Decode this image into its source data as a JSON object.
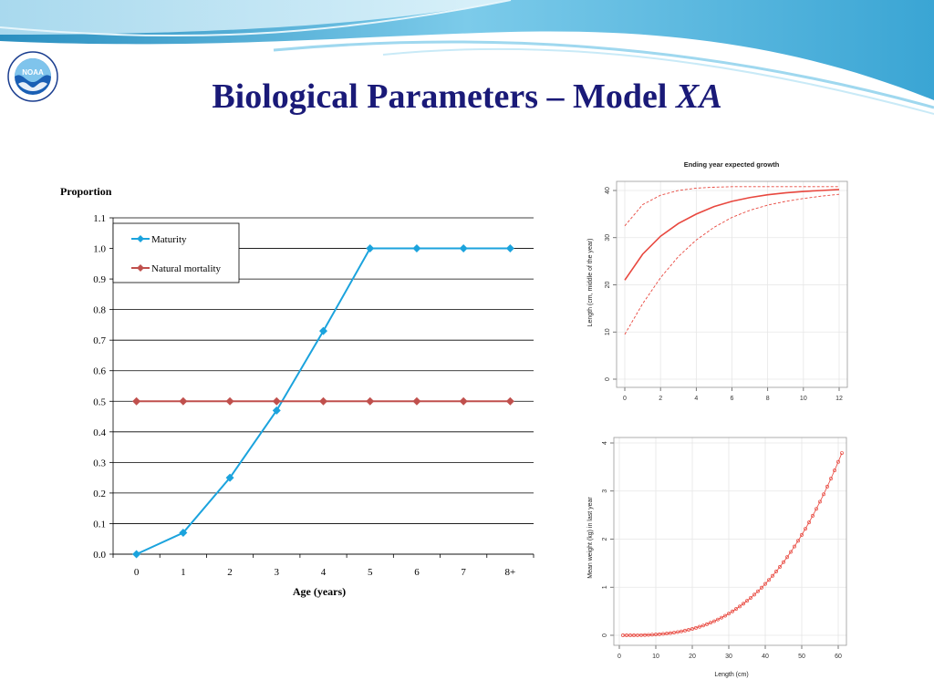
{
  "slide": {
    "title_main": "Biological Parameters – Model ",
    "title_italic": "XA",
    "logo_text": "NOAA",
    "logo_ring_text": "NATIONAL OCEANIC AND ATMOSPHERIC ADMINISTRATION · U.S. DEPARTMENT OF COMMERCE",
    "colors": {
      "title": "#1a1a78",
      "banner": "#5fb8dd",
      "maturity": "#1ba3dd",
      "mortality": "#c0504d",
      "growth": "#e8473e"
    }
  },
  "chart_data": [
    {
      "type": "line",
      "title": "",
      "ylabel": "Proportion",
      "xlabel": "Age (years)",
      "categories": [
        "0",
        "1",
        "2",
        "3",
        "4",
        "5",
        "6",
        "7",
        "8+"
      ],
      "ylim": [
        0,
        1.1
      ],
      "yticks": [
        "0.0",
        "0.1",
        "0.2",
        "0.3",
        "0.4",
        "0.5",
        "0.6",
        "0.7",
        "0.8",
        "0.9",
        "1.0",
        "1.1"
      ],
      "grid": true,
      "legend": "top-left",
      "series": [
        {
          "name": "Maturity",
          "values": [
            0.0,
            0.07,
            0.25,
            0.47,
            0.73,
            1.0,
            1.0,
            1.0,
            1.0
          ],
          "color": "#1ba3dd",
          "marker": "diamond"
        },
        {
          "name": "Natural mortality",
          "values": [
            0.5,
            0.5,
            0.5,
            0.5,
            0.5,
            0.5,
            0.5,
            0.5,
            0.5
          ],
          "color": "#c0504d",
          "marker": "diamond"
        }
      ]
    },
    {
      "type": "line",
      "title": "Ending year expected growth",
      "xlabel": "",
      "ylabel": "Length (cm, middle of the year)",
      "xlim": [
        0,
        12
      ],
      "ylim": [
        0,
        40
      ],
      "xticks": [
        "0",
        "2",
        "4",
        "6",
        "8",
        "10",
        "12"
      ],
      "yticks": [
        "0",
        "10",
        "20",
        "30",
        "40"
      ],
      "grid": true,
      "x": [
        0,
        1,
        2,
        3,
        4,
        5,
        6,
        7,
        8,
        9,
        10,
        11,
        12
      ],
      "series": [
        {
          "name": "",
          "style": "solid",
          "values": [
            21,
            26.5,
            30.3,
            33.0,
            35.0,
            36.6,
            37.7,
            38.5,
            39.1,
            39.5,
            39.8,
            40.0,
            40.2
          ]
        },
        {
          "name": "",
          "style": "dashed-upper",
          "values": [
            32.5,
            37.0,
            39.0,
            40.0,
            40.5,
            40.7,
            40.8,
            40.8,
            40.8,
            40.8,
            40.8,
            40.8,
            40.8
          ]
        },
        {
          "name": "",
          "style": "dashed-lower",
          "values": [
            9.5,
            16.0,
            21.5,
            26.0,
            29.5,
            32.2,
            34.3,
            35.8,
            36.9,
            37.7,
            38.3,
            38.8,
            39.2
          ]
        }
      ]
    },
    {
      "type": "scatter",
      "title": "",
      "xlabel": "Length (cm)",
      "ylabel": "Mean weight (kg) in last year",
      "xlim": [
        0,
        60
      ],
      "ylim": [
        0,
        4
      ],
      "xticks": [
        "0",
        "10",
        "20",
        "30",
        "40",
        "50",
        "60"
      ],
      "yticks": [
        "0",
        "1",
        "2",
        "3",
        "4"
      ],
      "grid": true,
      "relation": {
        "a": 1.67e-05,
        "b": 3.0,
        "x_start": 1,
        "x_end": 61,
        "x_step": 1
      }
    }
  ]
}
